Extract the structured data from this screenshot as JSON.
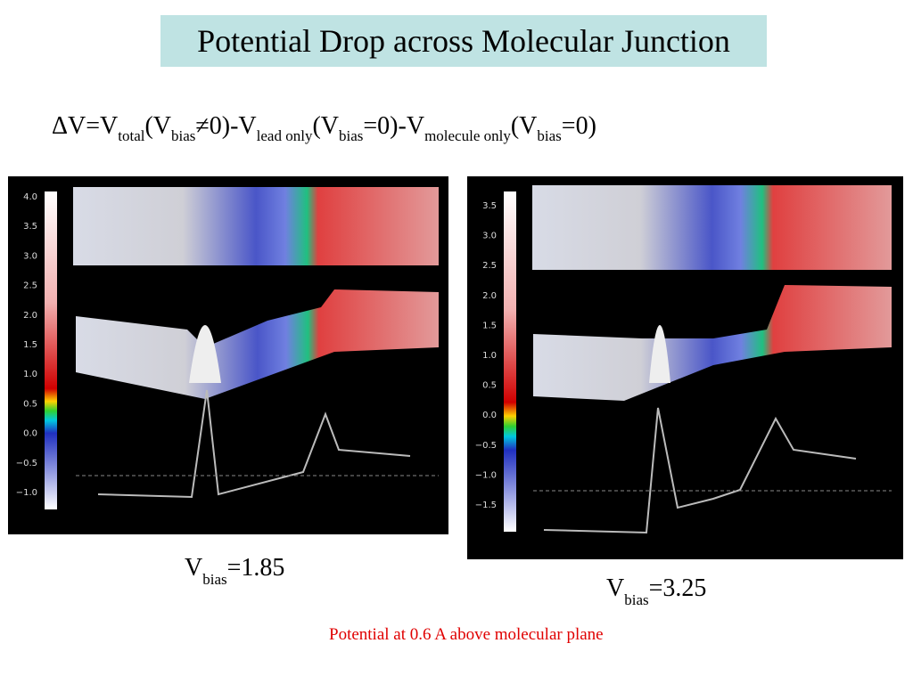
{
  "title": "Potential Drop across Molecular Junction",
  "formula": [
    "ΔV=V",
    "total",
    "(V",
    "bias",
    "≠0)-V",
    "lead only",
    "(V",
    "bias",
    "=0)-V",
    "molecule only",
    "(V",
    "bias",
    "=0)"
  ],
  "panels": [
    {
      "scale": [
        "4.0",
        "3.5",
        "3.0",
        "2.5",
        "2.0",
        "1.5",
        "1.0",
        "0.5",
        "0.0",
        "−0.5",
        "−1.0"
      ],
      "label": [
        "V",
        "bias",
        "=1.85"
      ]
    },
    {
      "scale": [
        "3.5",
        "3.0",
        "2.5",
        "2.0",
        "1.5",
        "1.0",
        "0.5",
        "0.0",
        "−0.5",
        "−1.0",
        "−1.5"
      ],
      "label": [
        "V",
        "bias",
        "=3.25"
      ]
    }
  ],
  "caption": "Potential at 0.6 A above molecular plane"
}
